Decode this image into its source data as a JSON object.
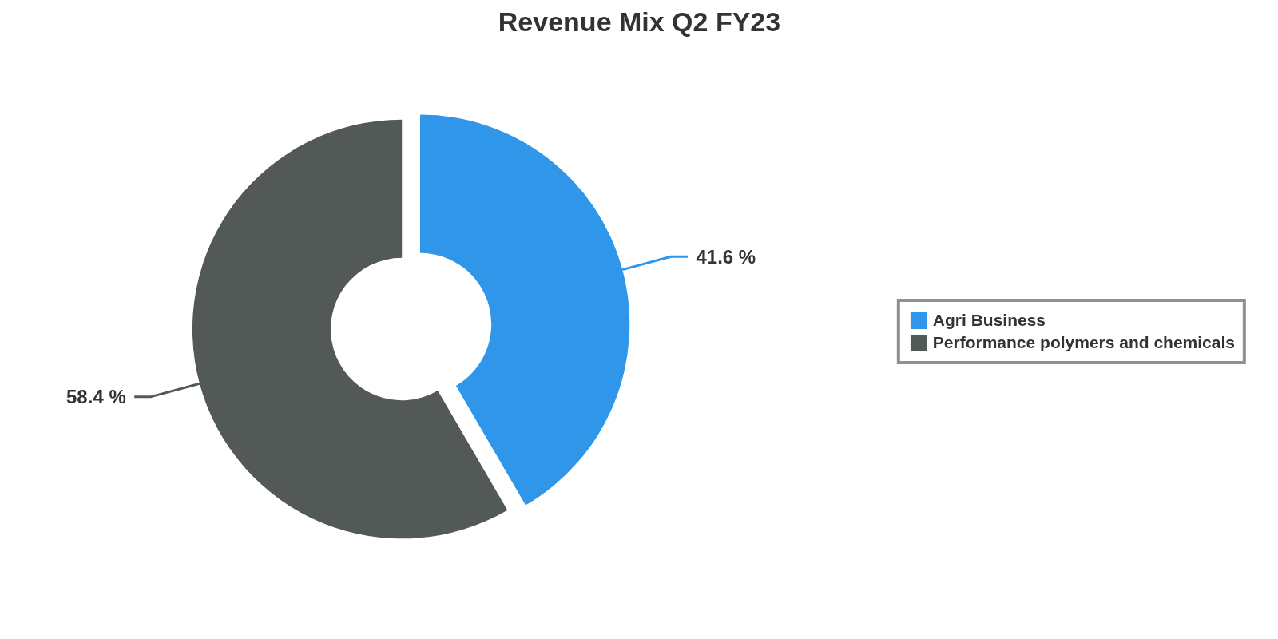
{
  "chart_data": {
    "type": "donut",
    "title": "Revenue Mix Q2 FY23",
    "categories": [
      "Agri Business",
      "Performance polymers and chemicals"
    ],
    "values": [
      41.6,
      58.4
    ],
    "colors": [
      "#2f96e9",
      "#535957"
    ],
    "value_labels": [
      "41.6 %",
      "58.4 %"
    ],
    "legend": "right"
  }
}
